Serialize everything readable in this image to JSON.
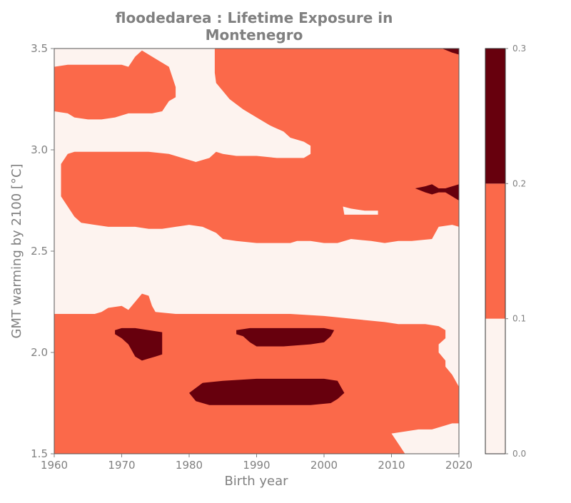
{
  "chart_data": {
    "type": "heatmap",
    "title_lines": [
      "floodedarea : Lifetime Exposure in",
      "Montenegro"
    ],
    "xlabel": "Birth year",
    "ylabel": "GMT warming by 2100 [°C]",
    "xlim": [
      1960,
      2020
    ],
    "ylim": [
      1.5,
      3.5
    ],
    "x_ticks": [
      1960,
      1970,
      1980,
      1990,
      2000,
      2010,
      2020
    ],
    "y_ticks": [
      1.5,
      2.0,
      2.5,
      3.0,
      3.5
    ],
    "y_tick_labels": [
      "1.5",
      "2.0",
      "2.5",
      "3.0",
      "3.5"
    ],
    "colorbar": {
      "levels": [
        0.0,
        0.1,
        0.2,
        0.3
      ],
      "tick_labels": [
        "0.0",
        "0.1",
        "0.2",
        "0.3"
      ],
      "colors": [
        "#fdf3ef",
        "#fb694a",
        "#67000d"
      ]
    },
    "background_level_color": "#fdf3ef",
    "regions": [
      {
        "name": "mid-band-top-left",
        "level": "0.1-0.2",
        "color": "#fb694a",
        "points": [
          [
            1960,
            3.41
          ],
          [
            1962,
            3.42
          ],
          [
            1970,
            3.42
          ],
          [
            1971,
            3.41
          ],
          [
            1972,
            3.46
          ],
          [
            1973,
            3.49
          ],
          [
            1975,
            3.45
          ],
          [
            1977,
            3.41
          ],
          [
            1978,
            3.31
          ],
          [
            1978,
            3.26
          ],
          [
            1977,
            3.24
          ],
          [
            1976,
            3.19
          ],
          [
            1974.5,
            3.18
          ],
          [
            1973,
            3.18
          ],
          [
            1971,
            3.18
          ],
          [
            1969,
            3.16
          ],
          [
            1967,
            3.15
          ],
          [
            1965,
            3.15
          ],
          [
            1963,
            3.16
          ],
          [
            1962,
            3.18
          ],
          [
            1960,
            3.19
          ]
        ]
      },
      {
        "name": "mid-band-upper-right",
        "level": "0.1-0.2",
        "color": "#fb694a",
        "points": [
          [
            1983.8,
            3.5
          ],
          [
            2020,
            3.5
          ],
          [
            2020,
            2.62
          ],
          [
            2019,
            2.63
          ],
          [
            2017,
            2.62
          ],
          [
            2016,
            2.56
          ],
          [
            2013,
            2.55
          ],
          [
            2011,
            2.55
          ],
          [
            2009,
            2.54
          ],
          [
            2007,
            2.55
          ],
          [
            2004,
            2.56
          ],
          [
            2002,
            2.54
          ],
          [
            2000,
            2.54
          ],
          [
            1998,
            2.55
          ],
          [
            1996,
            2.55
          ],
          [
            1995,
            2.54
          ],
          [
            1993,
            2.54
          ],
          [
            1990,
            2.54
          ],
          [
            1987,
            2.55
          ],
          [
            1985,
            2.56
          ],
          [
            1984,
            2.59
          ],
          [
            1982,
            2.62
          ],
          [
            1980,
            2.63
          ],
          [
            1978,
            2.62
          ],
          [
            1976,
            2.61
          ],
          [
            1974,
            2.61
          ],
          [
            1972,
            2.62
          ],
          [
            1970,
            2.62
          ],
          [
            1968,
            2.62
          ],
          [
            1966,
            2.63
          ],
          [
            1964,
            2.64
          ],
          [
            1963,
            2.67
          ],
          [
            1962,
            2.72
          ],
          [
            1961,
            2.77
          ],
          [
            1961,
            2.84
          ],
          [
            1961,
            2.93
          ],
          [
            1962,
            2.98
          ],
          [
            1963,
            2.99
          ],
          [
            1966,
            2.99
          ],
          [
            1970,
            2.99
          ],
          [
            1974,
            2.99
          ],
          [
            1977,
            2.98
          ],
          [
            1979,
            2.96
          ],
          [
            1981,
            2.94
          ],
          [
            1983,
            2.96
          ],
          [
            1984,
            2.99
          ],
          [
            1985,
            2.98
          ],
          [
            1987,
            2.97
          ],
          [
            1990,
            2.97
          ],
          [
            1993,
            2.96
          ],
          [
            1995,
            2.96
          ],
          [
            1997,
            2.96
          ],
          [
            1998,
            2.98
          ],
          [
            1998,
            3.02
          ],
          [
            1997,
            3.04
          ],
          [
            1995,
            3.06
          ],
          [
            1994,
            3.09
          ],
          [
            1992,
            3.12
          ],
          [
            1990,
            3.16
          ],
          [
            1988,
            3.2
          ],
          [
            1986,
            3.25
          ],
          [
            1985,
            3.29
          ],
          [
            1984,
            3.33
          ],
          [
            1983.8,
            3.38
          ]
        ]
      },
      {
        "name": "mid-band-bottom",
        "level": "0.1-0.2",
        "color": "#fb694a",
        "points": [
          [
            1960,
            2.19
          ],
          [
            1966,
            2.19
          ],
          [
            1967,
            2.2
          ],
          [
            1968,
            2.22
          ],
          [
            1970,
            2.23
          ],
          [
            1971,
            2.21
          ],
          [
            1972,
            2.25
          ],
          [
            1973,
            2.29
          ],
          [
            1974,
            2.28
          ],
          [
            1974.5,
            2.23
          ],
          [
            1975,
            2.2
          ],
          [
            1978,
            2.19
          ],
          [
            1985,
            2.19
          ],
          [
            1995,
            2.19
          ],
          [
            2000,
            2.18
          ],
          [
            2003,
            2.17
          ],
          [
            2006,
            2.16
          ],
          [
            2009,
            2.15
          ],
          [
            2011,
            2.14
          ],
          [
            2013,
            2.14
          ],
          [
            2015,
            2.14
          ],
          [
            2017,
            2.13
          ],
          [
            2018,
            2.11
          ],
          [
            2018,
            2.07
          ],
          [
            2017,
            2.04
          ],
          [
            2017,
            2.0
          ],
          [
            2018,
            1.96
          ],
          [
            2018,
            1.93
          ],
          [
            2019,
            1.89
          ],
          [
            2020,
            1.83
          ],
          [
            2020,
            1.65
          ],
          [
            2019,
            1.65
          ],
          [
            2018,
            1.64
          ],
          [
            2016,
            1.62
          ],
          [
            2014,
            1.62
          ],
          [
            2012,
            1.61
          ],
          [
            2010,
            1.6
          ],
          [
            2011,
            1.55
          ],
          [
            2012,
            1.5
          ],
          [
            1960,
            1.5
          ]
        ]
      },
      {
        "name": "high-band-1970s",
        "level": "0.2-0.3",
        "color": "#67000d",
        "points": [
          [
            1969,
            2.11
          ],
          [
            1970,
            2.12
          ],
          [
            1972,
            2.12
          ],
          [
            1974,
            2.11
          ],
          [
            1976,
            2.1
          ],
          [
            1976,
            1.99
          ],
          [
            1975,
            1.98
          ],
          [
            1974,
            1.97
          ],
          [
            1973,
            1.96
          ],
          [
            1972,
            1.98
          ],
          [
            1971,
            2.04
          ],
          [
            1970,
            2.07
          ],
          [
            1969,
            2.09
          ]
        ]
      },
      {
        "name": "high-band-1990s",
        "level": "0.2-0.3",
        "color": "#67000d",
        "points": [
          [
            1987,
            2.11
          ],
          [
            1989,
            2.12
          ],
          [
            1995,
            2.12
          ],
          [
            2000,
            2.12
          ],
          [
            2001.5,
            2.11
          ],
          [
            2001,
            2.08
          ],
          [
            2000,
            2.05
          ],
          [
            1998,
            2.04
          ],
          [
            1994,
            2.03
          ],
          [
            1990,
            2.03
          ],
          [
            1989,
            2.05
          ],
          [
            1988,
            2.08
          ],
          [
            1987,
            2.09
          ]
        ]
      },
      {
        "name": "high-band-lower",
        "level": "0.2-0.3",
        "color": "#67000d",
        "points": [
          [
            1980,
            1.8
          ],
          [
            1982,
            1.85
          ],
          [
            1985,
            1.86
          ],
          [
            1990,
            1.87
          ],
          [
            1995,
            1.87
          ],
          [
            2000,
            1.87
          ],
          [
            2002,
            1.86
          ],
          [
            2002.5,
            1.83
          ],
          [
            2003,
            1.8
          ],
          [
            2002,
            1.77
          ],
          [
            2001,
            1.75
          ],
          [
            1998,
            1.74
          ],
          [
            1995,
            1.74
          ],
          [
            1990,
            1.74
          ],
          [
            1985,
            1.74
          ],
          [
            1983,
            1.74
          ],
          [
            1981,
            1.76
          ]
        ]
      },
      {
        "name": "high-band-right",
        "level": "0.2-0.3",
        "color": "#67000d",
        "points": [
          [
            2013.5,
            2.81
          ],
          [
            2015,
            2.82
          ],
          [
            2016,
            2.83
          ],
          [
            2017,
            2.81
          ],
          [
            2018,
            2.81
          ],
          [
            2020,
            2.83
          ],
          [
            2020,
            2.75
          ],
          [
            2019,
            2.77
          ],
          [
            2018,
            2.79
          ],
          [
            2017,
            2.79
          ],
          [
            2016,
            2.78
          ],
          [
            2015,
            2.79
          ]
        ]
      },
      {
        "name": "high-band-top-corner",
        "level": "0.2-0.3",
        "color": "#67000d",
        "points": [
          [
            2017.5,
            3.5
          ],
          [
            2020,
            3.5
          ],
          [
            2020,
            3.47
          ],
          [
            2019,
            3.48
          ]
        ]
      },
      {
        "name": "low-band-hole-right",
        "level": "0.0-0.1",
        "color": "#fdf3ef",
        "points": [
          [
            2002.8,
            2.72
          ],
          [
            2004,
            2.71
          ],
          [
            2006,
            2.7
          ],
          [
            2008,
            2.7
          ],
          [
            2008,
            2.68
          ],
          [
            2006,
            2.68
          ],
          [
            2003,
            2.68
          ]
        ]
      }
    ]
  }
}
